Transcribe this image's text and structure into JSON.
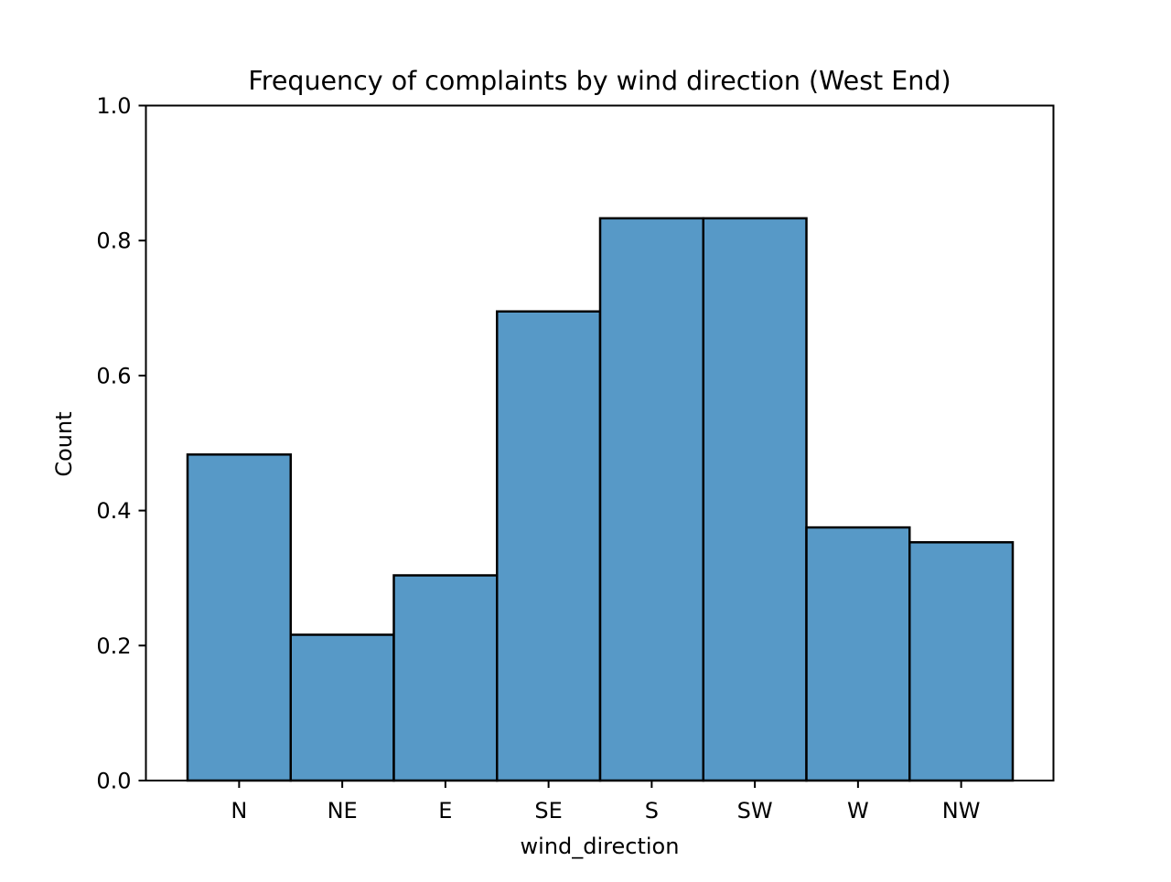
{
  "chart_data": {
    "type": "bar",
    "title": "Frequency of complaints by wind direction (West End)",
    "xlabel": "wind_direction",
    "ylabel": "Count",
    "categories": [
      "N",
      "NE",
      "E",
      "SE",
      "S",
      "SW",
      "W",
      "NW"
    ],
    "values": [
      0.483,
      0.216,
      0.304,
      0.695,
      0.833,
      0.833,
      0.375,
      0.353
    ],
    "ylim": [
      0,
      1.0
    ],
    "yticks": [
      0.0,
      0.2,
      0.4,
      0.6,
      0.8,
      1.0
    ],
    "ytick_labels": [
      "0.0",
      "0.2",
      "0.4",
      "0.6",
      "0.8",
      "1.0"
    ],
    "grid": false,
    "legend": "none",
    "colors": {
      "bar_fill": "#5799c7",
      "bar_edge": "#000000",
      "axes": "#000000"
    }
  }
}
